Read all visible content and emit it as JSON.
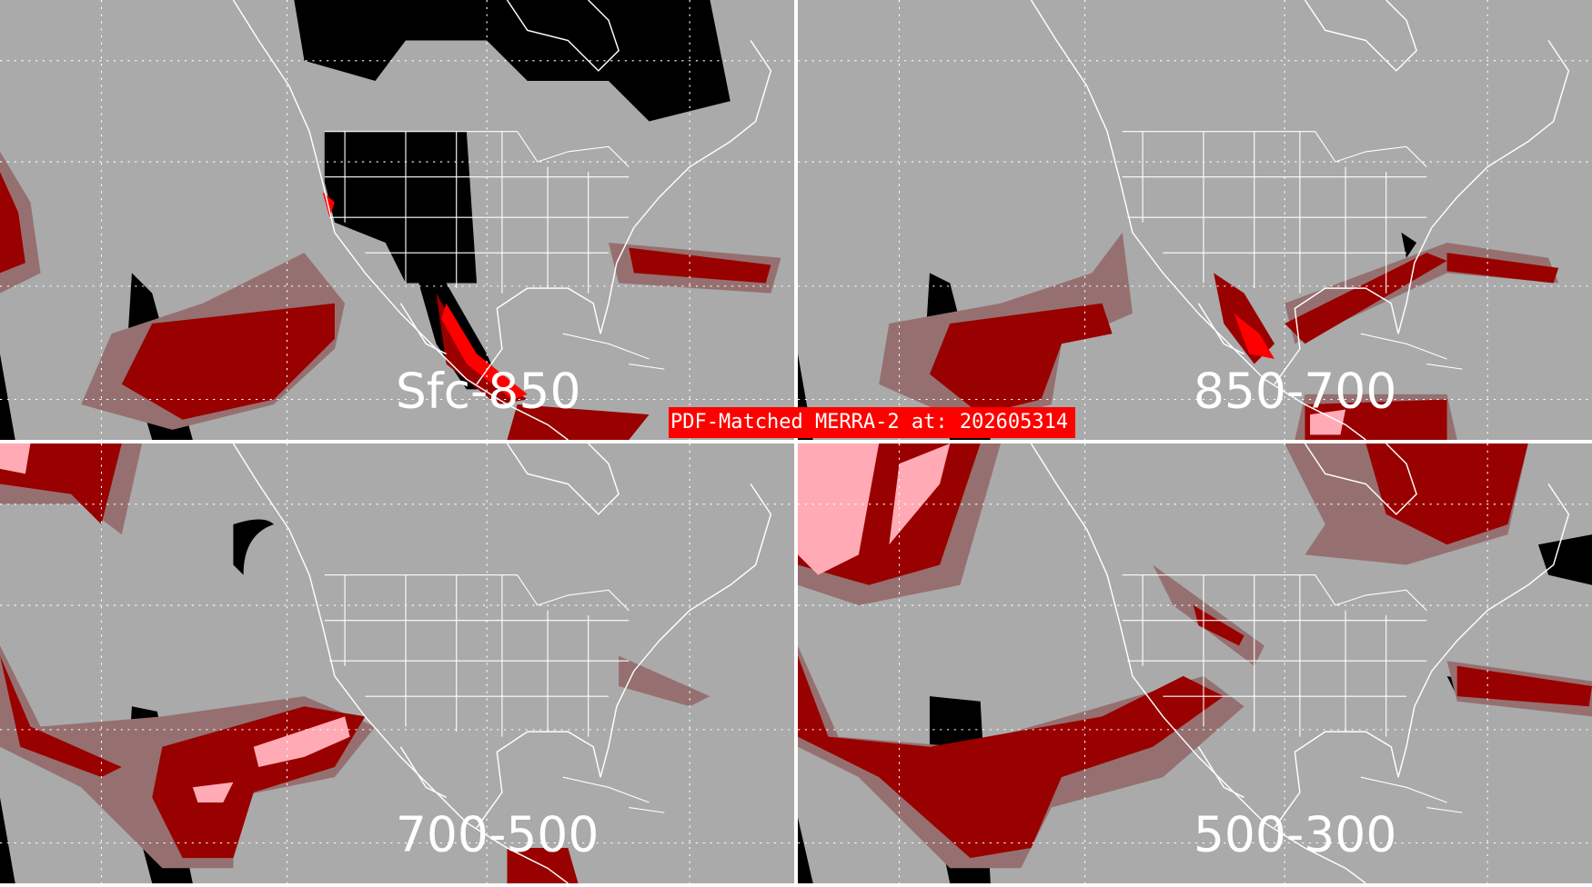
{
  "title": "PDF-Matched MERRA-2 at: 202605314",
  "colors": {
    "background": "#aaaaaa",
    "low": "#967070",
    "mid": "#990000",
    "high": "#ffaab4",
    "bright": "#ff0000",
    "missing": "#000000",
    "coastline": "#ffffff"
  },
  "panels": [
    {
      "label": "Sfc-850"
    },
    {
      "label": "850-700"
    },
    {
      "label": "700-500"
    },
    {
      "label": "500-300"
    }
  ]
}
